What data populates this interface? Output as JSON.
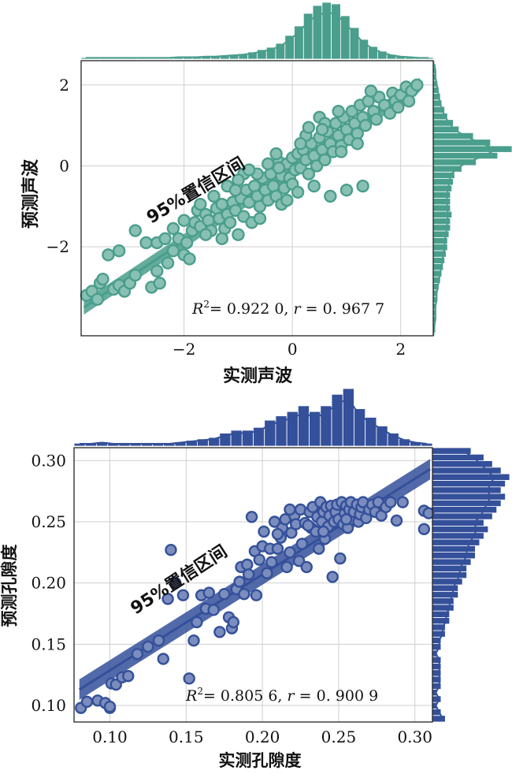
{
  "chart_data": [
    {
      "type": "scatter",
      "name": "acoustic",
      "color": "#4a9e8c",
      "xlabel": "实测声波",
      "ylabel": "预测声波",
      "annotation": "95%置信区间",
      "stats_r2_label": "R",
      "stats_r2_sup": "2",
      "stats_r2_value": "= 0.922 0, ",
      "stats_r_label": "r",
      "stats_r_value": " = 0. 967 7",
      "xlim": [
        -3.9,
        2.6
      ],
      "ylim": [
        -4.2,
        2.6
      ],
      "xticks": [
        -2,
        0,
        2
      ],
      "xtick_labels": [
        "−2",
        "0",
        "2"
      ],
      "yticks": [
        -2,
        0,
        2
      ],
      "ytick_labels": [
        "−2",
        "0",
        "2"
      ],
      "fit_line": [
        [
          -3.85,
          -3.5
        ],
        [
          2.35,
          2.0
        ]
      ],
      "points": [
        [
          -3.8,
          -3.2
        ],
        [
          -3.7,
          -3.1
        ],
        [
          -3.55,
          -2.9
        ],
        [
          -3.5,
          -2.8
        ],
        [
          -3.3,
          -3.05
        ],
        [
          -3.2,
          -2.95
        ],
        [
          -3.1,
          -3.1
        ],
        [
          -3.4,
          -2.2
        ],
        [
          -3.6,
          -3.3
        ],
        [
          -3.0,
          -2.9
        ],
        [
          -2.9,
          -2.7
        ],
        [
          -2.6,
          -3.0
        ],
        [
          -2.5,
          -2.6
        ],
        [
          -2.3,
          -2.4
        ],
        [
          -2.45,
          -2.9
        ],
        [
          -2.2,
          -2.1
        ],
        [
          -2.1,
          -1.8
        ],
        [
          -2.0,
          -2.2
        ],
        [
          -1.95,
          -1.9
        ],
        [
          -1.85,
          -1.6
        ],
        [
          -1.8,
          -1.4
        ],
        [
          -1.9,
          -2.3
        ],
        [
          -2.7,
          -1.9
        ],
        [
          -2.5,
          -1.9
        ],
        [
          -2.35,
          -1.8
        ],
        [
          -1.75,
          -1.1
        ],
        [
          -1.7,
          -1.5
        ],
        [
          -1.6,
          -1.2
        ],
        [
          -1.55,
          -1.35
        ],
        [
          -1.5,
          -1.6
        ],
        [
          -1.4,
          -1.05
        ],
        [
          -1.35,
          -1.3
        ],
        [
          -1.3,
          -0.95
        ],
        [
          -1.25,
          -1.55
        ],
        [
          -1.2,
          -1.2
        ],
        [
          -1.15,
          -1.4
        ],
        [
          -1.1,
          -0.9
        ],
        [
          -1.05,
          -1.1
        ],
        [
          -1.0,
          -1.7
        ],
        [
          -0.95,
          -0.8
        ],
        [
          -0.9,
          -1.25
        ],
        [
          -0.85,
          -0.6
        ],
        [
          -0.8,
          -0.9
        ],
        [
          -0.75,
          -1.4
        ],
        [
          -0.7,
          -0.5
        ],
        [
          -0.65,
          -0.75
        ],
        [
          -0.6,
          -1.0
        ],
        [
          -0.55,
          -0.3
        ],
        [
          -0.5,
          -0.6
        ],
        [
          -0.45,
          -0.85
        ],
        [
          -0.4,
          -0.2
        ],
        [
          -0.35,
          -0.5
        ],
        [
          -0.3,
          -0.75
        ],
        [
          -0.25,
          0.1
        ],
        [
          -0.2,
          -0.25
        ],
        [
          -0.15,
          -0.55
        ],
        [
          -0.1,
          0.05
        ],
        [
          -0.05,
          -0.3
        ],
        [
          0.0,
          0.2
        ],
        [
          0.0,
          -0.45
        ],
        [
          0.05,
          -0.1
        ],
        [
          0.1,
          0.3
        ],
        [
          0.15,
          -0.05
        ],
        [
          0.2,
          0.4
        ],
        [
          0.25,
          0.15
        ],
        [
          0.3,
          -0.2
        ],
        [
          0.35,
          0.55
        ],
        [
          0.4,
          0.25
        ],
        [
          0.45,
          0.0
        ],
        [
          0.5,
          0.7
        ],
        [
          0.55,
          0.4
        ],
        [
          0.6,
          0.15
        ],
        [
          0.65,
          0.85
        ],
        [
          0.7,
          0.55
        ],
        [
          0.75,
          0.35
        ],
        [
          0.8,
          1.05
        ],
        [
          0.85,
          0.75
        ],
        [
          0.9,
          0.5
        ],
        [
          0.95,
          1.2
        ],
        [
          1.0,
          0.9
        ],
        [
          1.05,
          0.65
        ],
        [
          1.1,
          1.35
        ],
        [
          1.15,
          1.05
        ],
        [
          1.2,
          0.8
        ],
        [
          1.25,
          1.5
        ],
        [
          1.3,
          1.2
        ],
        [
          1.35,
          1.0
        ],
        [
          1.4,
          1.6
        ],
        [
          1.5,
          1.35
        ],
        [
          1.55,
          1.15
        ],
        [
          1.6,
          1.7
        ],
        [
          1.7,
          1.5
        ],
        [
          1.8,
          1.3
        ],
        [
          1.85,
          1.8
        ],
        [
          1.9,
          1.6
        ],
        [
          2.0,
          1.75
        ],
        [
          2.1,
          1.95
        ],
        [
          2.2,
          1.85
        ],
        [
          2.3,
          2.0
        ],
        [
          2.15,
          1.6
        ],
        [
          -1.2,
          -0.5
        ],
        [
          -0.9,
          -0.2
        ],
        [
          -0.6,
          -1.3
        ],
        [
          -0.3,
          0.3
        ],
        [
          0.1,
          -0.65
        ],
        [
          0.4,
          -0.5
        ],
        [
          0.7,
          -0.75
        ],
        [
          1.0,
          -0.6
        ],
        [
          1.3,
          -0.5
        ],
        [
          0.5,
          1.2
        ],
        [
          0.6,
          1.05
        ],
        [
          -0.2,
          -0.95
        ],
        [
          -1.7,
          -0.95
        ],
        [
          -1.45,
          -0.75
        ],
        [
          -1.0,
          -0.35
        ],
        [
          -2.0,
          -1.35
        ],
        [
          -2.9,
          -1.6
        ],
        [
          -3.2,
          -2.1
        ],
        [
          -1.3,
          -1.8
        ],
        [
          -0.45,
          0.05
        ],
        [
          0.25,
          0.75
        ],
        [
          0.85,
          1.35
        ],
        [
          1.45,
          1.85
        ],
        [
          1.95,
          1.45
        ],
        [
          -0.1,
          -0.85
        ],
        [
          -0.65,
          -0.2
        ],
        [
          -1.05,
          -0.6
        ],
        [
          -0.25,
          -0.05
        ],
        [
          0.15,
          0.55
        ],
        [
          0.55,
          0.9
        ],
        [
          0.9,
          0.35
        ],
        [
          1.2,
          0.55
        ],
        [
          -1.6,
          -1.7
        ],
        [
          -2.2,
          -1.55
        ],
        [
          -0.8,
          -0.1
        ],
        [
          0.3,
          0.95
        ]
      ],
      "top_hist": [
        2,
        2,
        2,
        2,
        2,
        2,
        2,
        2,
        2,
        2,
        3,
        3,
        3,
        4,
        4,
        5,
        6,
        7,
        9,
        12,
        15,
        20,
        30,
        42,
        58,
        68,
        72,
        70,
        55,
        40,
        25,
        16,
        10,
        6,
        4,
        3,
        2,
        2
      ],
      "right_hist": [
        1,
        1,
        2,
        2,
        2,
        3,
        3,
        4,
        5,
        6,
        7,
        8,
        9,
        10,
        10,
        11,
        12,
        12,
        13,
        12,
        12,
        12,
        13,
        14,
        15,
        20,
        30,
        45,
        55,
        40,
        28,
        18,
        14,
        10,
        8,
        6,
        5,
        4,
        3,
        2,
        2,
        1
      ]
    },
    {
      "type": "scatter",
      "name": "porosity",
      "color": "#34509a",
      "xlabel": "实测孔隙度",
      "ylabel": "预测孔隙度",
      "annotation": "95%置信区间",
      "stats_r2_label": "R",
      "stats_r2_sup": "2",
      "stats_r2_value": "= 0.805 6, ",
      "stats_r_label": "r",
      "stats_r_value": " = 0. 900 9",
      "xlim": [
        0.0765,
        0.3115
      ],
      "ylim": [
        0.0865,
        0.3105
      ],
      "xticks": [
        0.1,
        0.15,
        0.2,
        0.25,
        0.3
      ],
      "xtick_labels": [
        "0.10",
        "0.15",
        "0.20",
        "0.25",
        "0.30"
      ],
      "yticks": [
        0.1,
        0.15,
        0.2,
        0.25,
        0.3
      ],
      "ytick_labels": [
        "0.10",
        "0.15",
        "0.20",
        "0.25",
        "0.30"
      ],
      "fit_line": [
        [
          0.08,
          0.113
        ],
        [
          0.31,
          0.293
        ]
      ],
      "points": [
        [
          0.081,
          0.098
        ],
        [
          0.085,
          0.103
        ],
        [
          0.092,
          0.104
        ],
        [
          0.097,
          0.102
        ],
        [
          0.1,
          0.098
        ],
        [
          0.101,
          0.118
        ],
        [
          0.104,
          0.117
        ],
        [
          0.108,
          0.123
        ],
        [
          0.112,
          0.124
        ],
        [
          0.118,
          0.142
        ],
        [
          0.125,
          0.148
        ],
        [
          0.132,
          0.153
        ],
        [
          0.135,
          0.138
        ],
        [
          0.138,
          0.187
        ],
        [
          0.14,
          0.227
        ],
        [
          0.143,
          0.2
        ],
        [
          0.148,
          0.19
        ],
        [
          0.152,
          0.122
        ],
        [
          0.155,
          0.153
        ],
        [
          0.157,
          0.168
        ],
        [
          0.16,
          0.19
        ],
        [
          0.163,
          0.179
        ],
        [
          0.165,
          0.192
        ],
        [
          0.168,
          0.178
        ],
        [
          0.172,
          0.16
        ],
        [
          0.175,
          0.191
        ],
        [
          0.178,
          0.172
        ],
        [
          0.18,
          0.163
        ],
        [
          0.181,
          0.168
        ],
        [
          0.183,
          0.195
        ],
        [
          0.185,
          0.201
        ],
        [
          0.186,
          0.213
        ],
        [
          0.188,
          0.191
        ],
        [
          0.19,
          0.215
        ],
        [
          0.191,
          0.207
        ],
        [
          0.193,
          0.254
        ],
        [
          0.195,
          0.226
        ],
        [
          0.196,
          0.19
        ],
        [
          0.198,
          0.219
        ],
        [
          0.2,
          0.23
        ],
        [
          0.201,
          0.242
        ],
        [
          0.203,
          0.208
        ],
        [
          0.205,
          0.228
        ],
        [
          0.206,
          0.217
        ],
        [
          0.208,
          0.25
        ],
        [
          0.21,
          0.228
        ],
        [
          0.212,
          0.237
        ],
        [
          0.213,
          0.245
        ],
        [
          0.215,
          0.252
        ],
        [
          0.216,
          0.213
        ],
        [
          0.218,
          0.225
        ],
        [
          0.219,
          0.241
        ],
        [
          0.221,
          0.255
        ],
        [
          0.222,
          0.248
        ],
        [
          0.224,
          0.218
        ],
        [
          0.225,
          0.26
        ],
        [
          0.226,
          0.232
        ],
        [
          0.228,
          0.249
        ],
        [
          0.229,
          0.213
        ],
        [
          0.231,
          0.258
        ],
        [
          0.232,
          0.245
        ],
        [
          0.233,
          0.262
        ],
        [
          0.235,
          0.242
        ],
        [
          0.236,
          0.254
        ],
        [
          0.237,
          0.228
        ],
        [
          0.238,
          0.266
        ],
        [
          0.239,
          0.25
        ],
        [
          0.24,
          0.258
        ],
        [
          0.241,
          0.236
        ],
        [
          0.242,
          0.262
        ],
        [
          0.243,
          0.246
        ],
        [
          0.244,
          0.255
        ],
        [
          0.245,
          0.263
        ],
        [
          0.246,
          0.205
        ],
        [
          0.247,
          0.25
        ],
        [
          0.248,
          0.258
        ],
        [
          0.249,
          0.264
        ],
        [
          0.25,
          0.252
        ],
        [
          0.251,
          0.22
        ],
        [
          0.252,
          0.266
        ],
        [
          0.253,
          0.248
        ],
        [
          0.254,
          0.257
        ],
        [
          0.255,
          0.263
        ],
        [
          0.256,
          0.245
        ],
        [
          0.257,
          0.26
        ],
        [
          0.258,
          0.266
        ],
        [
          0.259,
          0.252
        ],
        [
          0.26,
          0.258
        ],
        [
          0.262,
          0.264
        ],
        [
          0.263,
          0.25
        ],
        [
          0.264,
          0.256
        ],
        [
          0.265,
          0.262
        ],
        [
          0.266,
          0.266
        ],
        [
          0.268,
          0.253
        ],
        [
          0.27,
          0.26
        ],
        [
          0.272,
          0.264
        ],
        [
          0.274,
          0.258
        ],
        [
          0.276,
          0.266
        ],
        [
          0.278,
          0.255
        ],
        [
          0.281,
          0.262
        ],
        [
          0.284,
          0.266
        ],
        [
          0.288,
          0.251
        ],
        [
          0.292,
          0.266
        ],
        [
          0.306,
          0.259
        ],
        [
          0.306,
          0.244
        ],
        [
          0.309,
          0.257
        ],
        [
          0.1,
          0.099
        ],
        [
          0.21,
          0.24
        ],
        [
          0.23,
          0.247
        ],
        [
          0.218,
          0.26
        ],
        [
          0.24,
          0.242
        ],
        [
          0.255,
          0.252
        ]
      ],
      "top_hist": [
        2,
        2,
        3,
        2,
        2,
        2,
        2,
        2,
        2,
        3,
        4,
        5,
        6,
        9,
        11,
        11,
        13,
        18,
        21,
        24,
        28,
        24,
        28,
        36,
        40,
        26,
        20,
        14,
        9,
        5,
        3,
        2
      ],
      "right_hist": [
        3,
        2,
        1,
        2,
        1,
        2,
        2,
        2,
        2,
        2,
        1,
        2,
        2,
        3,
        3,
        4,
        4,
        5,
        5,
        6,
        6,
        7,
        8,
        8,
        9,
        10,
        10,
        11,
        12,
        13,
        12,
        14,
        15,
        16,
        17,
        16,
        17,
        18,
        16,
        14,
        12,
        9
      ]
    }
  ]
}
